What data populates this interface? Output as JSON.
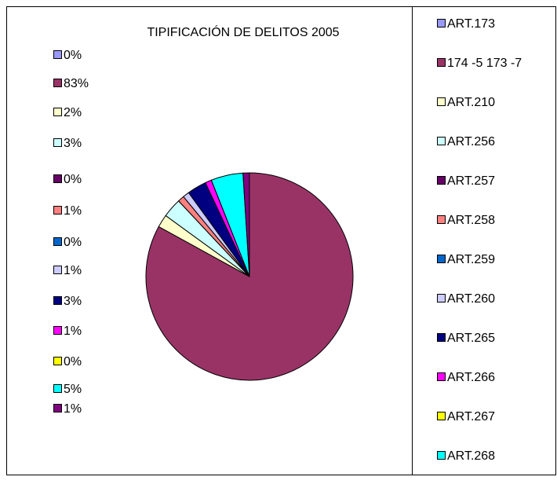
{
  "chart_data": {
    "type": "pie",
    "title": "TIPIFICACIÓN DE DELITOS 2005",
    "categories": [
      "ART.173",
      "174 -5 173 -7",
      "ART.210",
      "ART.256",
      "ART.257",
      "ART.258",
      "ART.259",
      "ART.260",
      "ART.265",
      "ART.266",
      "ART.267",
      "ART.268",
      null
    ],
    "values": [
      0,
      83,
      2,
      3,
      0,
      1,
      0,
      1,
      3,
      1,
      0,
      5,
      1
    ],
    "value_labels": [
      "0%",
      "83%",
      "2%",
      "3%",
      "0%",
      "1%",
      "0%",
      "1%",
      "3%",
      "1%",
      "0%",
      "5%",
      "1%"
    ],
    "colors": [
      "#9999ff",
      "#993366",
      "#ffffcc",
      "#ccffff",
      "#660066",
      "#ff8080",
      "#0066cc",
      "#ccccff",
      "#000080",
      "#ff00ff",
      "#ffff00",
      "#00ffff",
      "#800080"
    ],
    "legend": "right"
  }
}
